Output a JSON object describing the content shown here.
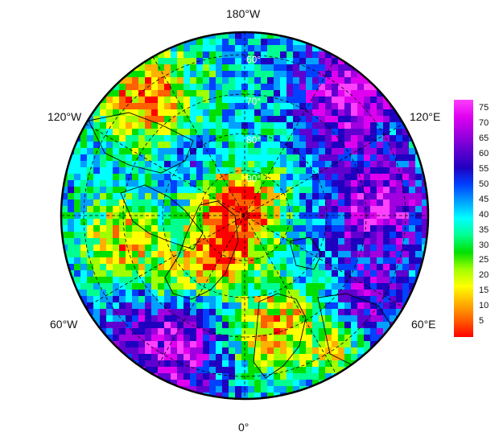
{
  "map": {
    "projection": "north polar stereographic",
    "longitude_labels": {
      "top": "180°W",
      "bottom": "0°",
      "upper_left": "120°W",
      "upper_right": "120°E",
      "lower_left": "60°W",
      "lower_right": "60°E"
    },
    "latitude_labels": [
      "60°",
      "70°",
      "80°",
      "90°"
    ],
    "grid": true
  },
  "colorbar": {
    "ticks": [
      "75",
      "70",
      "65",
      "60",
      "55",
      "50",
      "45",
      "40",
      "35",
      "30",
      "25",
      "20",
      "15",
      "10",
      "5"
    ],
    "range": [
      0,
      78
    ],
    "colors_low_to_high": [
      "#ff0000",
      "#ff6000",
      "#ffb000",
      "#ffff00",
      "#a0ff00",
      "#00e000",
      "#00ff90",
      "#00ffff",
      "#00a0ff",
      "#0040ff",
      "#2000c0",
      "#6000d0",
      "#a000e0",
      "#e000f0",
      "#ff40ff"
    ]
  }
}
